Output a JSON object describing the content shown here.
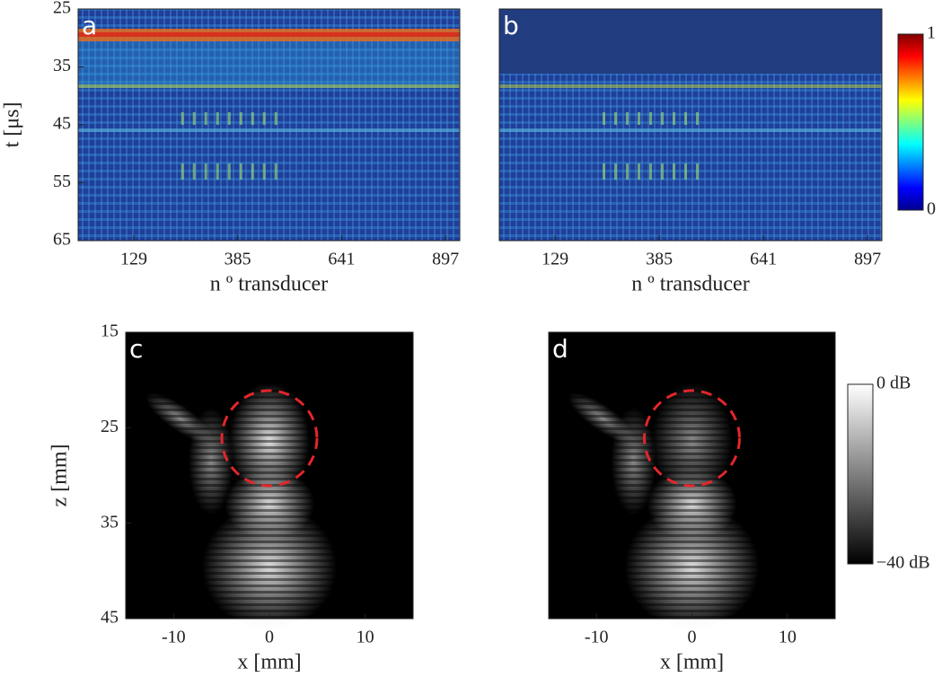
{
  "panels": [
    {
      "label": "a",
      "xlabel": "n º transducer",
      "ylabel": "t [μs]",
      "xlim": [
        -8,
        932
      ],
      "ylim": [
        25,
        65
      ],
      "y_direction": "reverse",
      "xticks": [
        129,
        385,
        641,
        897
      ],
      "yticks": [
        25,
        35,
        45,
        55,
        65
      ]
    },
    {
      "label": "b",
      "xlabel": "n º transducer",
      "xlim": [
        -8,
        932
      ],
      "ylim": [
        25,
        65
      ],
      "y_direction": "reverse",
      "xticks": [
        129,
        385,
        641,
        897
      ]
    },
    {
      "label": "c",
      "xlabel": "x [mm]",
      "ylabel": "z [mm]",
      "xlim": [
        -15,
        15
      ],
      "ylim": [
        15,
        45
      ],
      "y_direction": "reverse",
      "xticks": [
        -10,
        0,
        10
      ],
      "yticks": [
        15,
        25,
        35,
        45
      ]
    },
    {
      "label": "d",
      "xlabel": "x [mm]",
      "xlim": [
        -15,
        15
      ],
      "ylim": [
        15,
        45
      ],
      "y_direction": "reverse",
      "xticks": [
        -10,
        0,
        10
      ]
    }
  ],
  "colorbars": [
    {
      "top_label": "1",
      "bottom_label": "0",
      "colormap": "jet"
    },
    {
      "top_label": "0 dB",
      "bottom_label": "−40 dB",
      "colormap": "gray"
    }
  ]
}
